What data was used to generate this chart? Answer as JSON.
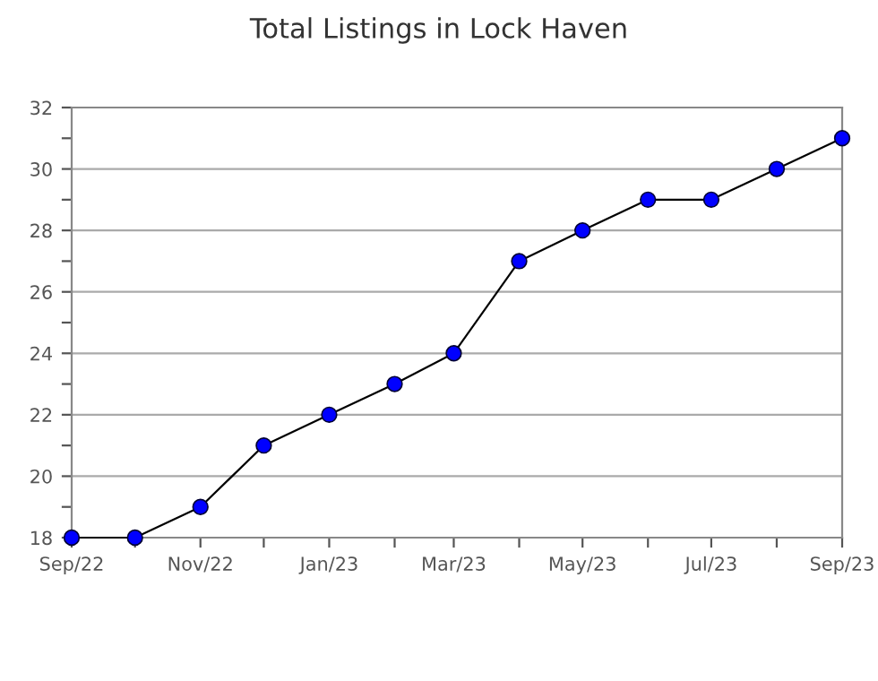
{
  "chart_data": {
    "type": "line",
    "title": "Total Listings in Lock Haven",
    "x": [
      "2022-09",
      "2022-10",
      "2022-11",
      "2022-12",
      "2023-01",
      "2023-02",
      "2023-03",
      "2023-04",
      "2023-05",
      "2023-06",
      "2023-07",
      "2023-08",
      "2023-09"
    ],
    "series": [
      {
        "color": "#0000ff",
        "values": [
          18,
          18,
          19,
          21,
          22,
          23,
          24,
          27,
          28,
          29,
          29,
          30,
          31
        ]
      }
    ],
    "xlim": [
      "2022-09",
      "2023-09"
    ],
    "xticks": [
      {
        "value": "2022-09",
        "label": "Sep/22"
      },
      {
        "value": "2022-10",
        "label": null
      },
      {
        "value": "2022-11",
        "label": "Nov/22"
      },
      {
        "value": "2022-12",
        "label": null
      },
      {
        "value": "2023-01",
        "label": "Jan/23"
      },
      {
        "value": "2023-02",
        "label": null
      },
      {
        "value": "2023-03",
        "label": "Mar/23"
      },
      {
        "value": "2023-04",
        "label": null
      },
      {
        "value": "2023-05",
        "label": "May/23"
      },
      {
        "value": "2023-06",
        "label": null
      },
      {
        "value": "2023-07",
        "label": "Jul/23"
      },
      {
        "value": "2023-08",
        "label": null
      },
      {
        "value": "2023-09",
        "label": "Sep/23"
      }
    ],
    "ylim": [
      18,
      32
    ],
    "yticks": [
      18,
      {
        "value": 19,
        "label": null
      },
      20,
      {
        "value": 21,
        "label": null
      },
      22,
      {
        "value": 23,
        "label": null
      },
      24,
      {
        "value": 25,
        "label": null
      },
      26,
      {
        "value": 27,
        "label": null
      },
      28,
      {
        "value": 29,
        "label": null
      },
      30,
      {
        "value": 31,
        "label": null
      },
      32
    ],
    "grid": "y",
    "marker": "circle",
    "line_style": "solid",
    "legend": false
  }
}
